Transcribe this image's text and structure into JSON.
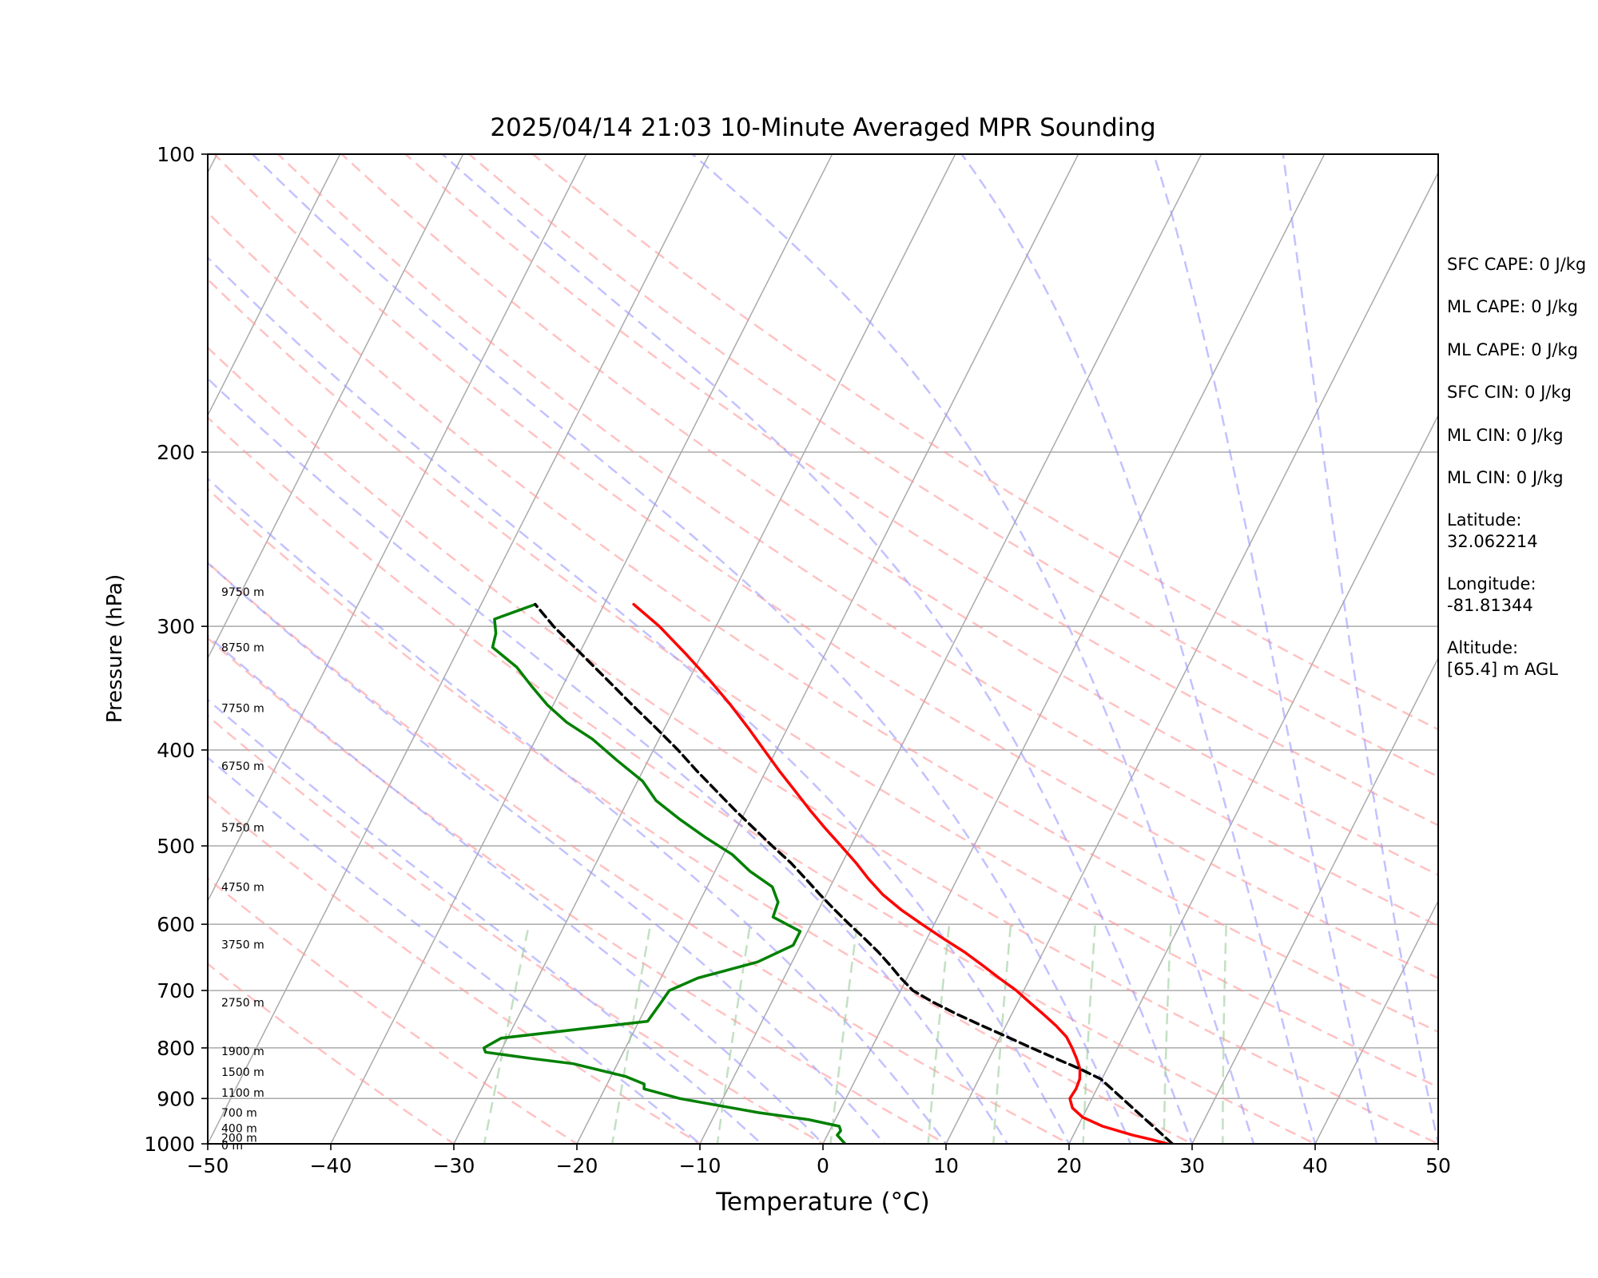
{
  "chart_data": {
    "type": "line",
    "title": "2025/04/14 21:03 10-Minute Averaged MPR Sounding",
    "xlabel": "Temperature (°C)",
    "ylabel": "Pressure (hPa)",
    "xlim": [
      -50,
      50
    ],
    "ylim": [
      1000,
      100
    ],
    "y_scale": "log",
    "skew": "skew-T",
    "grid": true,
    "x_ticks": [
      "−50",
      "−40",
      "−30",
      "−20",
      "−10",
      "0",
      "10",
      "20",
      "30",
      "40",
      "50"
    ],
    "y_ticks": [
      "100",
      "200",
      "300",
      "400",
      "500",
      "600",
      "700",
      "800",
      "900",
      "1000"
    ],
    "height_labels": [
      {
        "text": "9750 m",
        "p": 277
      },
      {
        "text": "8750 m",
        "p": 315
      },
      {
        "text": "7750 m",
        "p": 363
      },
      {
        "text": "6750 m",
        "p": 415
      },
      {
        "text": "5750 m",
        "p": 479
      },
      {
        "text": "4750 m",
        "p": 550
      },
      {
        "text": "3750 m",
        "p": 629
      },
      {
        "text": "2750 m",
        "p": 720
      },
      {
        "text": "1900 m",
        "p": 806
      },
      {
        "text": "1500 m",
        "p": 846
      },
      {
        "text": "1100 m",
        "p": 888
      },
      {
        "text": "700 m",
        "p": 930
      },
      {
        "text": "400 m",
        "p": 964
      },
      {
        "text": "200 m",
        "p": 986
      },
      {
        "text": "0 m",
        "p": 1004
      }
    ],
    "series": [
      {
        "role": "temperature",
        "color": "#ff0000",
        "points": [
          [
            1000,
            28.0
          ],
          [
            990,
            26.5
          ],
          [
            980,
            24.8
          ],
          [
            960,
            22.0
          ],
          [
            940,
            20.0
          ],
          [
            920,
            18.8
          ],
          [
            900,
            18.2
          ],
          [
            880,
            18.3
          ],
          [
            860,
            18.2
          ],
          [
            840,
            17.8
          ],
          [
            820,
            17.1
          ],
          [
            800,
            16.3
          ],
          [
            780,
            15.4
          ],
          [
            760,
            14.1
          ],
          [
            740,
            12.6
          ],
          [
            720,
            11.0
          ],
          [
            700,
            9.4
          ],
          [
            680,
            7.5
          ],
          [
            660,
            5.6
          ],
          [
            640,
            3.6
          ],
          [
            620,
            1.3
          ],
          [
            600,
            -1.0
          ],
          [
            580,
            -3.3
          ],
          [
            560,
            -5.4
          ],
          [
            540,
            -7.2
          ],
          [
            520,
            -8.9
          ],
          [
            500,
            -10.8
          ],
          [
            480,
            -12.8
          ],
          [
            460,
            -14.8
          ],
          [
            440,
            -16.8
          ],
          [
            420,
            -18.9
          ],
          [
            400,
            -21.0
          ],
          [
            380,
            -23.2
          ],
          [
            360,
            -25.6
          ],
          [
            340,
            -28.3
          ],
          [
            320,
            -31.3
          ],
          [
            300,
            -34.6
          ],
          [
            285,
            -37.6
          ]
        ]
      },
      {
        "role": "dewpoint",
        "color": "#008000",
        "points": [
          [
            1000,
            1.8
          ],
          [
            990,
            1.3
          ],
          [
            980,
            0.8
          ],
          [
            970,
            0.9
          ],
          [
            960,
            0.6
          ],
          [
            945,
            -2.2
          ],
          [
            930,
            -6.5
          ],
          [
            915,
            -10.0
          ],
          [
            900,
            -13.5
          ],
          [
            880,
            -16.8
          ],
          [
            870,
            -17.0
          ],
          [
            855,
            -18.8
          ],
          [
            830,
            -23.6
          ],
          [
            820,
            -27.2
          ],
          [
            808,
            -31.2
          ],
          [
            800,
            -31.5
          ],
          [
            782,
            -30.5
          ],
          [
            752,
            -19.3
          ],
          [
            722,
            -19.0
          ],
          [
            700,
            -18.8
          ],
          [
            680,
            -17.0
          ],
          [
            655,
            -12.8
          ],
          [
            630,
            -10.6
          ],
          [
            610,
            -10.6
          ],
          [
            590,
            -13.4
          ],
          [
            570,
            -13.6
          ],
          [
            550,
            -14.7
          ],
          [
            530,
            -17.2
          ],
          [
            510,
            -19.3
          ],
          [
            490,
            -22.2
          ],
          [
            470,
            -25.0
          ],
          [
            450,
            -27.7
          ],
          [
            430,
            -29.6
          ],
          [
            410,
            -32.5
          ],
          [
            390,
            -35.4
          ],
          [
            375,
            -38.2
          ],
          [
            360,
            -40.5
          ],
          [
            345,
            -42.5
          ],
          [
            330,
            -44.5
          ],
          [
            315,
            -47.3
          ],
          [
            305,
            -47.6
          ],
          [
            295,
            -48.3
          ],
          [
            285,
            -45.6
          ]
        ]
      },
      {
        "role": "parcel",
        "color": "#000000",
        "style": "dashed",
        "points": [
          [
            1000,
            28.4
          ],
          [
            960,
            26.1
          ],
          [
            920,
            23.7
          ],
          [
            880,
            21.2
          ],
          [
            860,
            19.9
          ],
          [
            840,
            17.8
          ],
          [
            820,
            15.4
          ],
          [
            800,
            13.0
          ],
          [
            780,
            10.6
          ],
          [
            760,
            8.1
          ],
          [
            740,
            5.6
          ],
          [
            720,
            3.2
          ],
          [
            700,
            1.0
          ],
          [
            680,
            -0.5
          ],
          [
            660,
            -1.9
          ],
          [
            640,
            -3.4
          ],
          [
            620,
            -5.1
          ],
          [
            600,
            -6.9
          ],
          [
            580,
            -8.7
          ],
          [
            560,
            -10.5
          ],
          [
            540,
            -12.3
          ],
          [
            520,
            -14.2
          ],
          [
            500,
            -16.4
          ],
          [
            480,
            -18.6
          ],
          [
            460,
            -20.9
          ],
          [
            440,
            -23.2
          ],
          [
            420,
            -25.6
          ],
          [
            400,
            -28.0
          ],
          [
            380,
            -30.7
          ],
          [
            360,
            -33.6
          ],
          [
            340,
            -36.6
          ],
          [
            320,
            -39.8
          ],
          [
            300,
            -43.2
          ],
          [
            285,
            -45.6
          ]
        ]
      }
    ],
    "background_lines": {
      "isotherms": {
        "color": "#aaaaaa",
        "values": [
          -130,
          -120,
          -110,
          -100,
          -90,
          -80,
          -70,
          -60,
          -50,
          -40,
          -30,
          -20,
          -10,
          0,
          10,
          20,
          30,
          40,
          50
        ]
      },
      "dry_adiabats": {
        "color": "#ff9999",
        "style": "dashed",
        "values": [
          -30,
          -20,
          -10,
          0,
          10,
          20,
          30,
          40,
          50,
          60,
          70,
          80,
          90,
          100,
          110,
          120,
          130
        ]
      },
      "moist_adiabats": {
        "color": "#9999ff",
        "style": "dashed",
        "values": [
          -10,
          -5,
          0,
          5,
          10,
          15,
          20,
          25,
          30,
          35,
          40,
          45,
          50
        ]
      },
      "mixing_ratio": {
        "color": "#99cc99",
        "style": "dashed",
        "top_hpa": 600,
        "values": [
          0.4,
          1,
          2,
          4,
          7,
          10,
          16,
          24,
          32
        ]
      }
    }
  },
  "stats": [
    {
      "text": "SFC CAPE: 0 J/kg"
    },
    {
      "text": "ML CAPE: 0 J/kg"
    },
    {
      "text": "ML CAPE: 0 J/kg"
    },
    {
      "text": "SFC CIN: 0 J/kg"
    },
    {
      "text": "ML CIN: 0 J/kg"
    },
    {
      "text": "ML CIN: 0 J/kg"
    },
    {
      "text": "Latitude:\n32.062214"
    },
    {
      "text": "Longitude:\n-81.81344"
    },
    {
      "text": "Altitude:\n[65.4] m AGL"
    }
  ]
}
